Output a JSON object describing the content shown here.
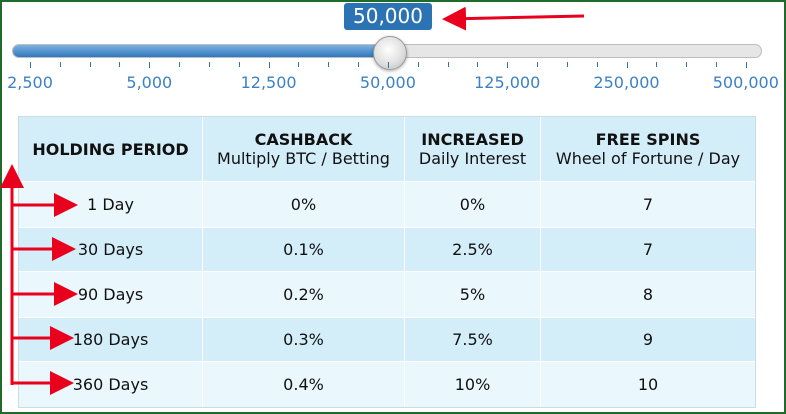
{
  "slider": {
    "value_label": "50,000",
    "tick_labels": [
      "2,500",
      "5,000",
      "12,500",
      "50,000",
      "125,000",
      "250,000",
      "500,000"
    ],
    "selected_index": 3,
    "accent_color": "#2c73b3"
  },
  "table": {
    "headers": [
      {
        "title": "HOLDING PERIOD",
        "subtitle": ""
      },
      {
        "title": "CASHBACK",
        "subtitle": "Multiply BTC / Betting"
      },
      {
        "title": "INCREASED",
        "subtitle": "Daily Interest"
      },
      {
        "title": "FREE SPINS",
        "subtitle": "Wheel of Fortune / Day"
      }
    ],
    "rows": [
      {
        "period": "1 Day",
        "cashback": "0%",
        "interest": "0%",
        "spins": "7"
      },
      {
        "period": "30 Days",
        "cashback": "0.1%",
        "interest": "2.5%",
        "spins": "7"
      },
      {
        "period": "90 Days",
        "cashback": "0.2%",
        "interest": "5%",
        "spins": "8"
      },
      {
        "period": "180 Days",
        "cashback": "0.3%",
        "interest": "7.5%",
        "spins": "9"
      },
      {
        "period": "360 Days",
        "cashback": "0.4%",
        "interest": "10%",
        "spins": "10"
      }
    ]
  },
  "annotation_color": "#e8001c"
}
